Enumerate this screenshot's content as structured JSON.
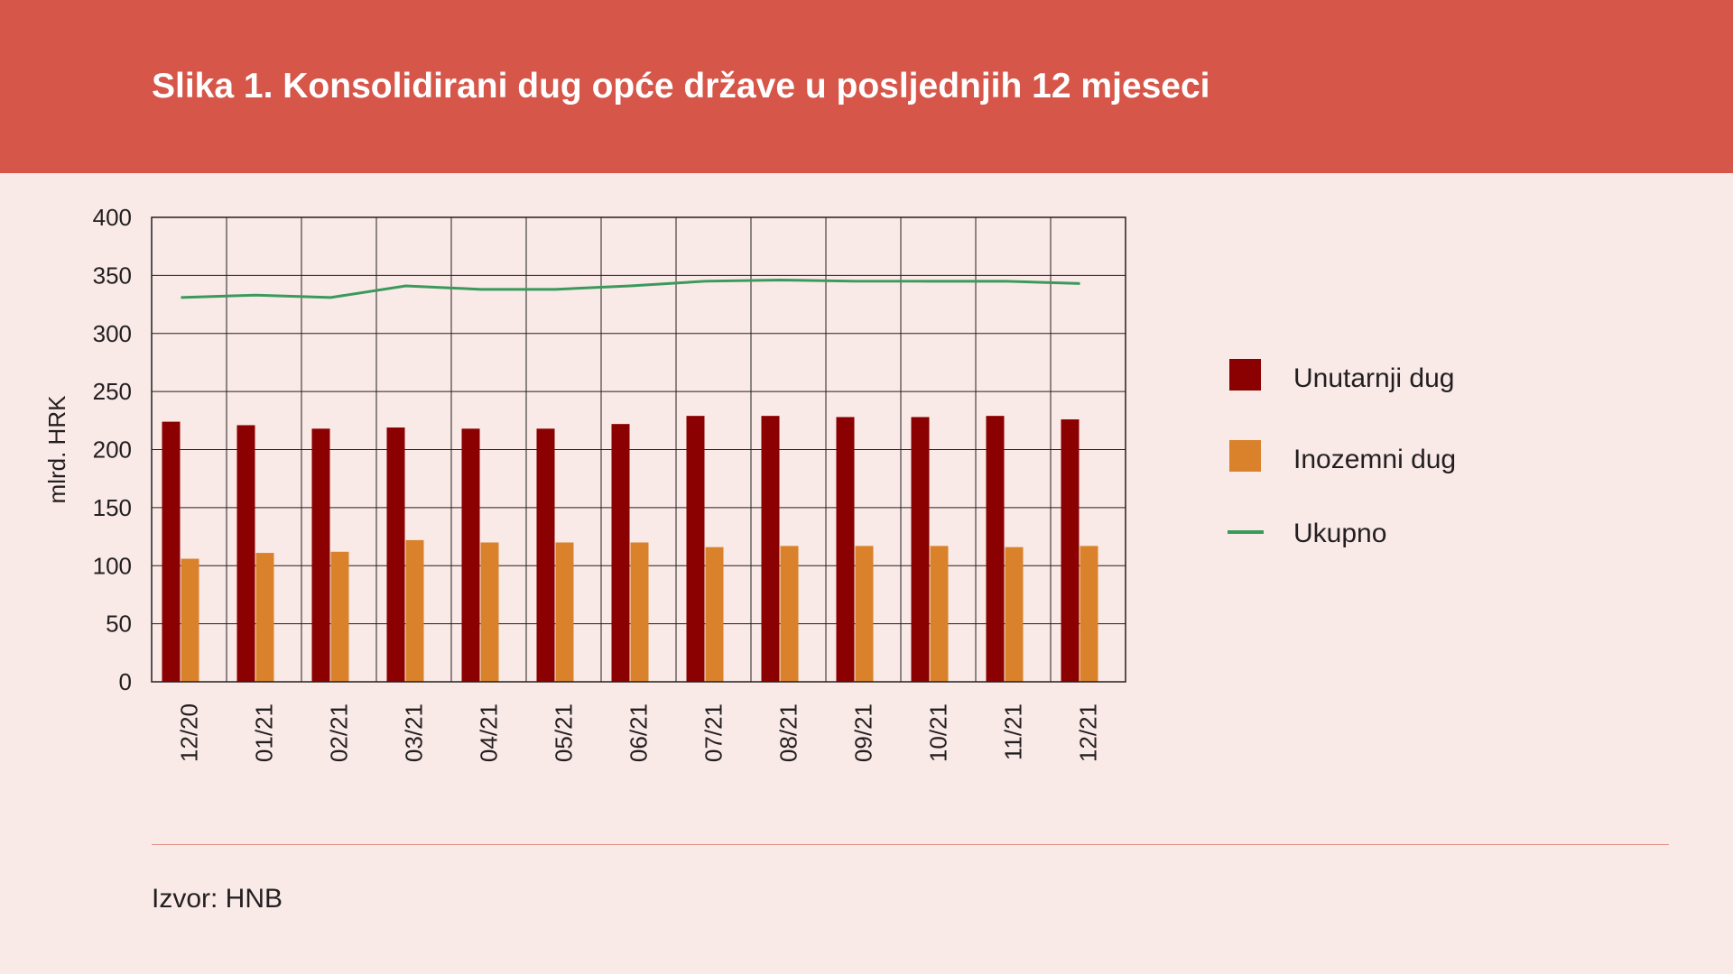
{
  "title": "Slika 1. Konsolidirani dug opće države u posljednjih 12 mjeseci",
  "source": "Izvor: HNB",
  "colors": {
    "header": "#d6564a",
    "background": "#f9e9e7",
    "domestic": "#8b0000",
    "foreign": "#d9822b",
    "total": "#3a9a5c"
  },
  "chart_data": {
    "type": "bar",
    "ylabel": "mlrd. HRK",
    "xlabel": "",
    "ylim": [
      0,
      400
    ],
    "yticks": [
      0,
      50,
      100,
      150,
      200,
      250,
      300,
      350,
      400
    ],
    "grid": true,
    "legend_position": "right",
    "categories": [
      "12/20",
      "01/21",
      "02/21",
      "03/21",
      "04/21",
      "05/21",
      "06/21",
      "07/21",
      "08/21",
      "09/21",
      "10/21",
      "11/21",
      "12/21"
    ],
    "series": [
      {
        "name": "Unutarnji dug",
        "type": "bar",
        "values": [
          224,
          221,
          218,
          219,
          218,
          218,
          222,
          229,
          229,
          228,
          228,
          229,
          226
        ]
      },
      {
        "name": "Inozemni dug",
        "type": "bar",
        "values": [
          106,
          111,
          112,
          122,
          120,
          120,
          120,
          116,
          117,
          117,
          117,
          116,
          117
        ]
      },
      {
        "name": "Ukupno",
        "type": "line",
        "values": [
          331,
          333,
          331,
          341,
          338,
          338,
          341,
          345,
          346,
          345,
          345,
          345,
          343
        ]
      }
    ]
  }
}
